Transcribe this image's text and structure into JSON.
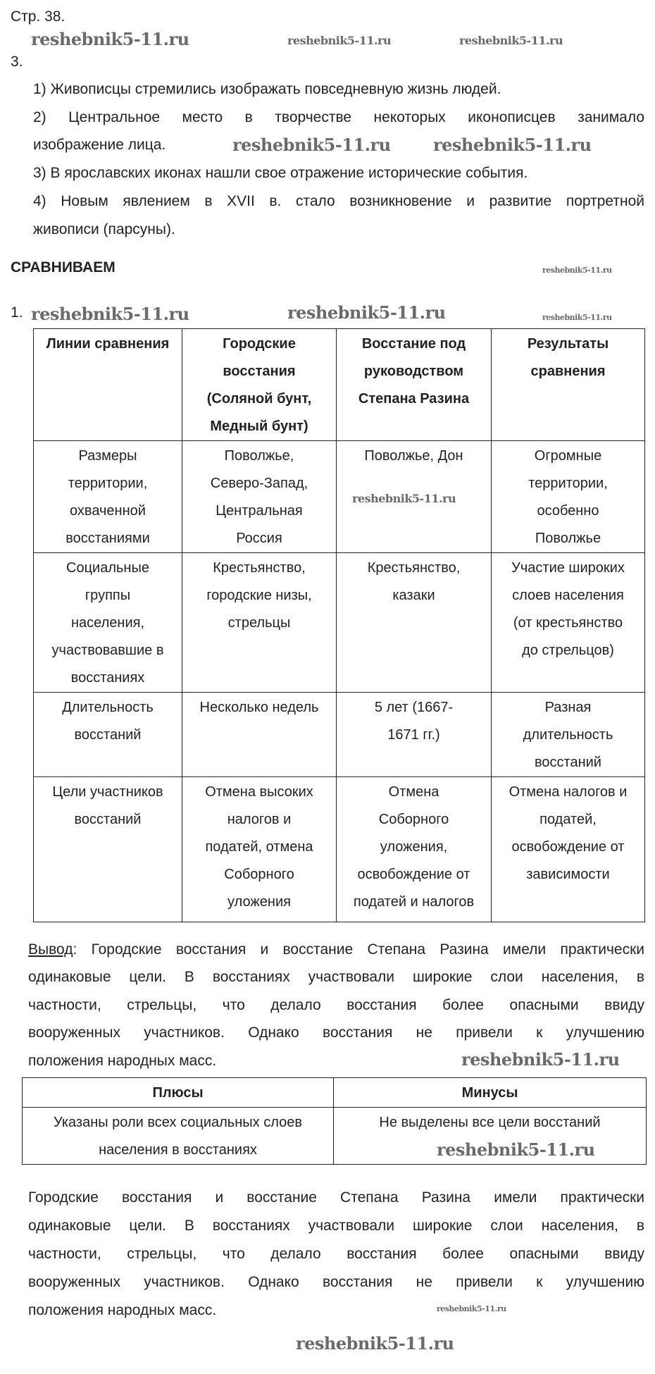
{
  "header": {
    "page": "Стр. 38.",
    "task_number": "3."
  },
  "task3_items": [
    "1) Живописцы стремились изображать повседневную жизнь людей.",
    "2) Центральное место в творчестве некоторых иконописцев занимало",
    "изображение лица.",
    "3) В ярославских иконах нашли свое отражение исторические события.",
    "4) Новым явлением в XVII в. стало возникновение и развитие портретной",
    "живописи (парсуны)."
  ],
  "section_title": "СРАВНИВАЕМ",
  "compare_number": "1.",
  "compare_table": {
    "headers": [
      [
        "Линии сравнения"
      ],
      [
        "Городские",
        "восстания",
        "(Соляной бунт,",
        "Медный бунт)"
      ],
      [
        "Восстание под",
        "руководством",
        "Степана Разина"
      ],
      [
        "Результаты",
        "сравнения"
      ]
    ],
    "rows": [
      [
        [
          "Размеры",
          "территории,",
          "охваченной",
          "восстаниями"
        ],
        [
          "Поволжье,",
          "Северо-Запад,",
          "Центральная",
          "Россия"
        ],
        [
          "Поволжье, Дон"
        ],
        [
          "Огромные",
          "территории,",
          "особенно",
          "Поволжье"
        ]
      ],
      [
        [
          "Социальные",
          "группы",
          "населения,",
          "участвовавшие в",
          "восстаниях"
        ],
        [
          "Крестьянство,",
          "городские низы,",
          "стрельцы"
        ],
        [
          "Крестьянство,",
          "казаки"
        ],
        [
          "Участие широких",
          "слоев населения",
          "(от крестьянство",
          "до стрельцов)"
        ]
      ],
      [
        [
          "Длительность",
          "восстаний"
        ],
        [
          "Несколько недель"
        ],
        [
          "5 лет (1667-",
          "1671 гг.)"
        ],
        [
          "Разная",
          "длительность",
          "восстаний"
        ]
      ],
      [
        [
          "Цели участников",
          "восстаний"
        ],
        [
          "Отмена высоких",
          "налогов и",
          "податей, отмена",
          "Соборного",
          "уложения"
        ],
        [
          "Отмена",
          "Соборного",
          "уложения,",
          "освобождение от",
          "податей и налогов"
        ],
        [
          "Отмена налогов и",
          "податей,",
          "освобождение от",
          "зависимости"
        ]
      ]
    ]
  },
  "conclusion": {
    "label": "Вывод",
    "lines": [
      ": Городские восстания и восстание Степана Разина имели практически",
      "одинаковые цели. В восстаниях участвовали широкие слои населения, в",
      "частности, стрельцы, что делало восстания более опасными ввиду",
      "вооруженных участников. Однако восстания не привели к улучшению",
      "положения народных масс."
    ]
  },
  "pros_cons_table": {
    "headers": [
      "Плюсы",
      "Минусы"
    ],
    "pros": [
      "Указаны роли всех социальных слоев",
      "населения в восстаниях"
    ],
    "cons": [
      "Не выделены все цели восстаний"
    ]
  },
  "final_paragraph": [
    "Городские восстания и восстание Степана Разина имели практически",
    "одинаковые цели. В восстаниях участвовали широкие слои населения, в",
    "частности, стрельцы, что делало восстания более опасными ввиду",
    "вооруженных участников. Однако восстания не привели к улучшению",
    "положения народных масс."
  ],
  "watermark": "reshebnik5-11.ru"
}
